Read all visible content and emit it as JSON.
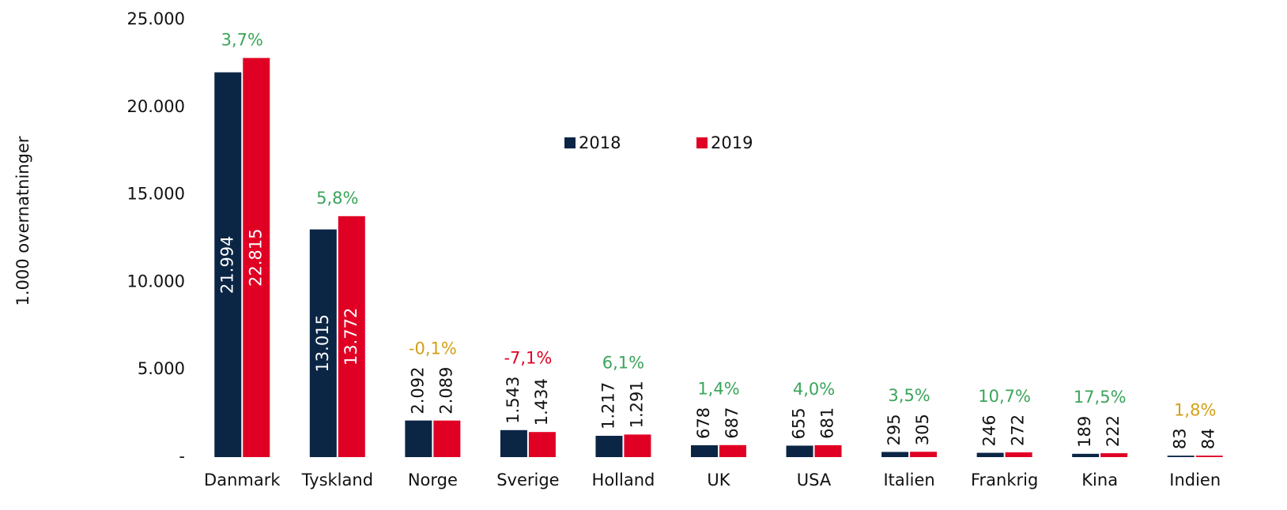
{
  "chart_data": {
    "type": "bar",
    "y_label": "1.000 overnatninger",
    "categories": [
      "Danmark",
      "Tyskland",
      "Norge",
      "Sverige",
      "Holland",
      "UK",
      "USA",
      "Italien",
      "Frankrig",
      "Kina",
      "Indien"
    ],
    "series": [
      {
        "name": "2018",
        "color": "#0b2545",
        "values": [
          21994,
          13015,
          2092,
          1543,
          1217,
          678,
          655,
          295,
          246,
          189,
          83
        ],
        "value_labels": [
          "21.994",
          "13.015",
          "2.092",
          "1.543",
          "1.217",
          "678",
          "655",
          "295",
          "246",
          "189",
          "83"
        ]
      },
      {
        "name": "2019",
        "color": "#e00024",
        "values": [
          22815,
          13772,
          2089,
          1434,
          1291,
          687,
          681,
          305,
          272,
          222,
          84
        ],
        "value_labels": [
          "22.815",
          "13.772",
          "2.089",
          "1.434",
          "1.291",
          "687",
          "681",
          "305",
          "272",
          "222",
          "84"
        ]
      }
    ],
    "annotations": [
      {
        "text": "3,7%",
        "color": "#3aa55a"
      },
      {
        "text": "5,8%",
        "color": "#3aa55a"
      },
      {
        "text": "-0,1%",
        "color": "#d4a017"
      },
      {
        "text": "-7,1%",
        "color": "#e00024"
      },
      {
        "text": "6,1%",
        "color": "#3aa55a"
      },
      {
        "text": "1,4%",
        "color": "#3aa55a"
      },
      {
        "text": "4,0%",
        "color": "#3aa55a"
      },
      {
        "text": "3,5%",
        "color": "#3aa55a"
      },
      {
        "text": "10,7%",
        "color": "#3aa55a"
      },
      {
        "text": "17,5%",
        "color": "#3aa55a"
      },
      {
        "text": "1,8%",
        "color": "#d4a017"
      }
    ],
    "ylim": [
      0,
      25000
    ],
    "yticks": [
      {
        "value": 0,
        "label": "-"
      },
      {
        "value": 5000,
        "label": "5.000"
      },
      {
        "value": 10000,
        "label": "10.000"
      },
      {
        "value": 15000,
        "label": "15.000"
      },
      {
        "value": 20000,
        "label": "20.000"
      },
      {
        "value": 25000,
        "label": "25.000"
      }
    ],
    "legend": "top"
  }
}
